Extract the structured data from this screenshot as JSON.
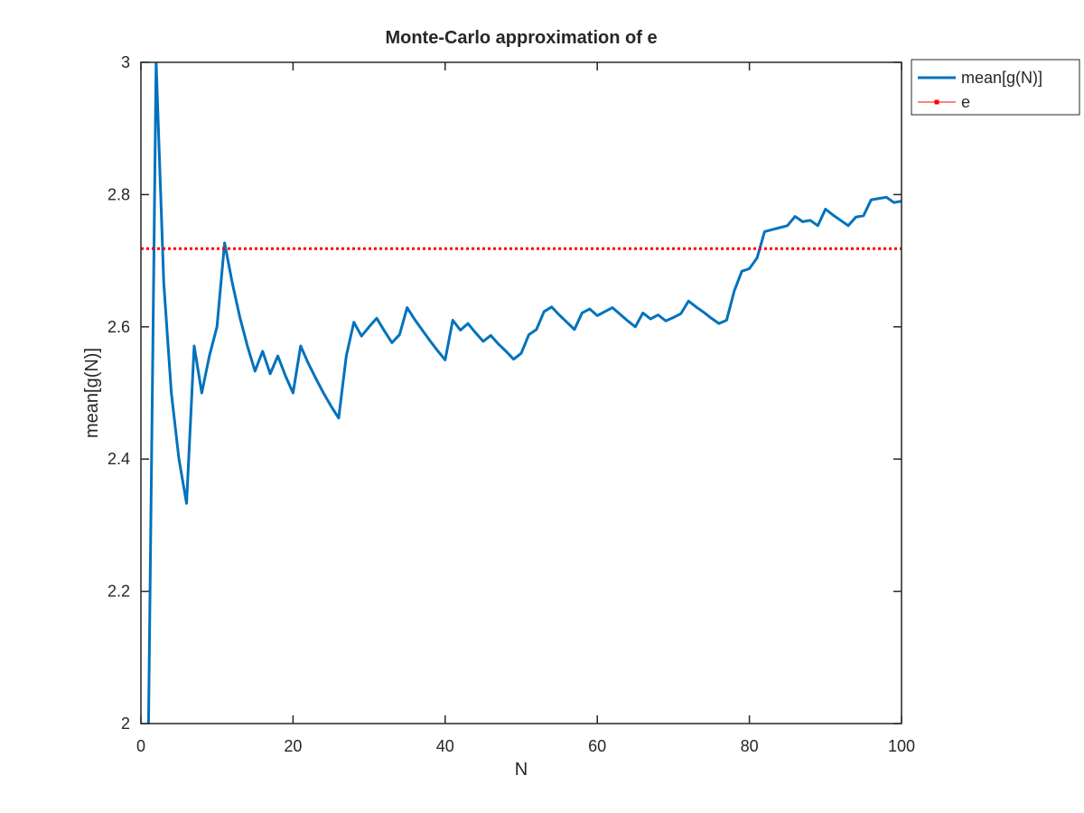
{
  "chart_data": {
    "type": "line",
    "title": "Monte-Carlo approximation of e",
    "xlabel": "N",
    "ylabel": "mean[g(N)]",
    "xlim": [
      0,
      100
    ],
    "ylim": [
      2,
      3
    ],
    "xticks": [
      0,
      20,
      40,
      60,
      80,
      100
    ],
    "yticks": [
      2,
      2.2,
      2.4,
      2.6,
      2.8,
      3
    ],
    "xtick_labels": [
      "0",
      "20",
      "40",
      "60",
      "80",
      "100"
    ],
    "ytick_labels": [
      "2",
      "2.2",
      "2.4",
      "2.6",
      "2.8",
      "3"
    ],
    "grid": false,
    "legend_position": "outside top-right",
    "series": [
      {
        "name": "mean[g(N)]",
        "color": "#0072bd",
        "style": "solid",
        "x": [
          1,
          2,
          3,
          4,
          5,
          6,
          7,
          8,
          9,
          10,
          11,
          12,
          13,
          14,
          15,
          16,
          17,
          18,
          19,
          20,
          21,
          22,
          23,
          24,
          25,
          26,
          27,
          28,
          29,
          30,
          31,
          32,
          33,
          34,
          35,
          36,
          37,
          38,
          39,
          40,
          41,
          42,
          43,
          44,
          45,
          46,
          47,
          48,
          49,
          50,
          51,
          52,
          53,
          54,
          55,
          56,
          57,
          58,
          59,
          60,
          61,
          62,
          63,
          64,
          65,
          66,
          67,
          68,
          69,
          70,
          71,
          72,
          73,
          74,
          75,
          76,
          77,
          78,
          79,
          80,
          81,
          82,
          83,
          84,
          85,
          86,
          87,
          88,
          89,
          90,
          91,
          92,
          93,
          94,
          95,
          96,
          97,
          98,
          99,
          100
        ],
        "y": [
          2.0,
          3.0,
          2.667,
          2.5,
          2.4,
          2.333,
          2.571,
          2.5,
          2.556,
          2.6,
          2.727,
          2.667,
          2.615,
          2.571,
          2.533,
          2.563,
          2.529,
          2.556,
          2.526,
          2.5,
          2.571,
          2.545,
          2.522,
          2.5,
          2.48,
          2.462,
          2.556,
          2.607,
          2.586,
          2.6,
          2.613,
          2.594,
          2.576,
          2.588,
          2.629,
          2.611,
          2.595,
          2.579,
          2.564,
          2.55,
          2.61,
          2.595,
          2.605,
          2.591,
          2.578,
          2.587,
          2.574,
          2.563,
          2.551,
          2.56,
          2.588,
          2.596,
          2.623,
          2.63,
          2.618,
          2.607,
          2.596,
          2.621,
          2.627,
          2.617,
          2.623,
          2.629,
          2.619,
          2.609,
          2.6,
          2.621,
          2.612,
          2.618,
          2.609,
          2.614,
          2.62,
          2.639,
          2.63,
          2.622,
          2.613,
          2.605,
          2.61,
          2.654,
          2.684,
          2.688,
          2.704,
          2.744,
          2.747,
          2.75,
          2.753,
          2.767,
          2.759,
          2.761,
          2.753,
          2.778,
          2.769,
          2.761,
          2.753,
          2.766,
          2.768,
          2.792,
          2.794,
          2.796,
          2.788,
          2.79
        ]
      },
      {
        "name": "e",
        "color": "#ff0000",
        "style": "dotted",
        "marker": "square",
        "x": [
          0,
          100
        ],
        "y": [
          2.71828,
          2.71828
        ]
      }
    ]
  }
}
